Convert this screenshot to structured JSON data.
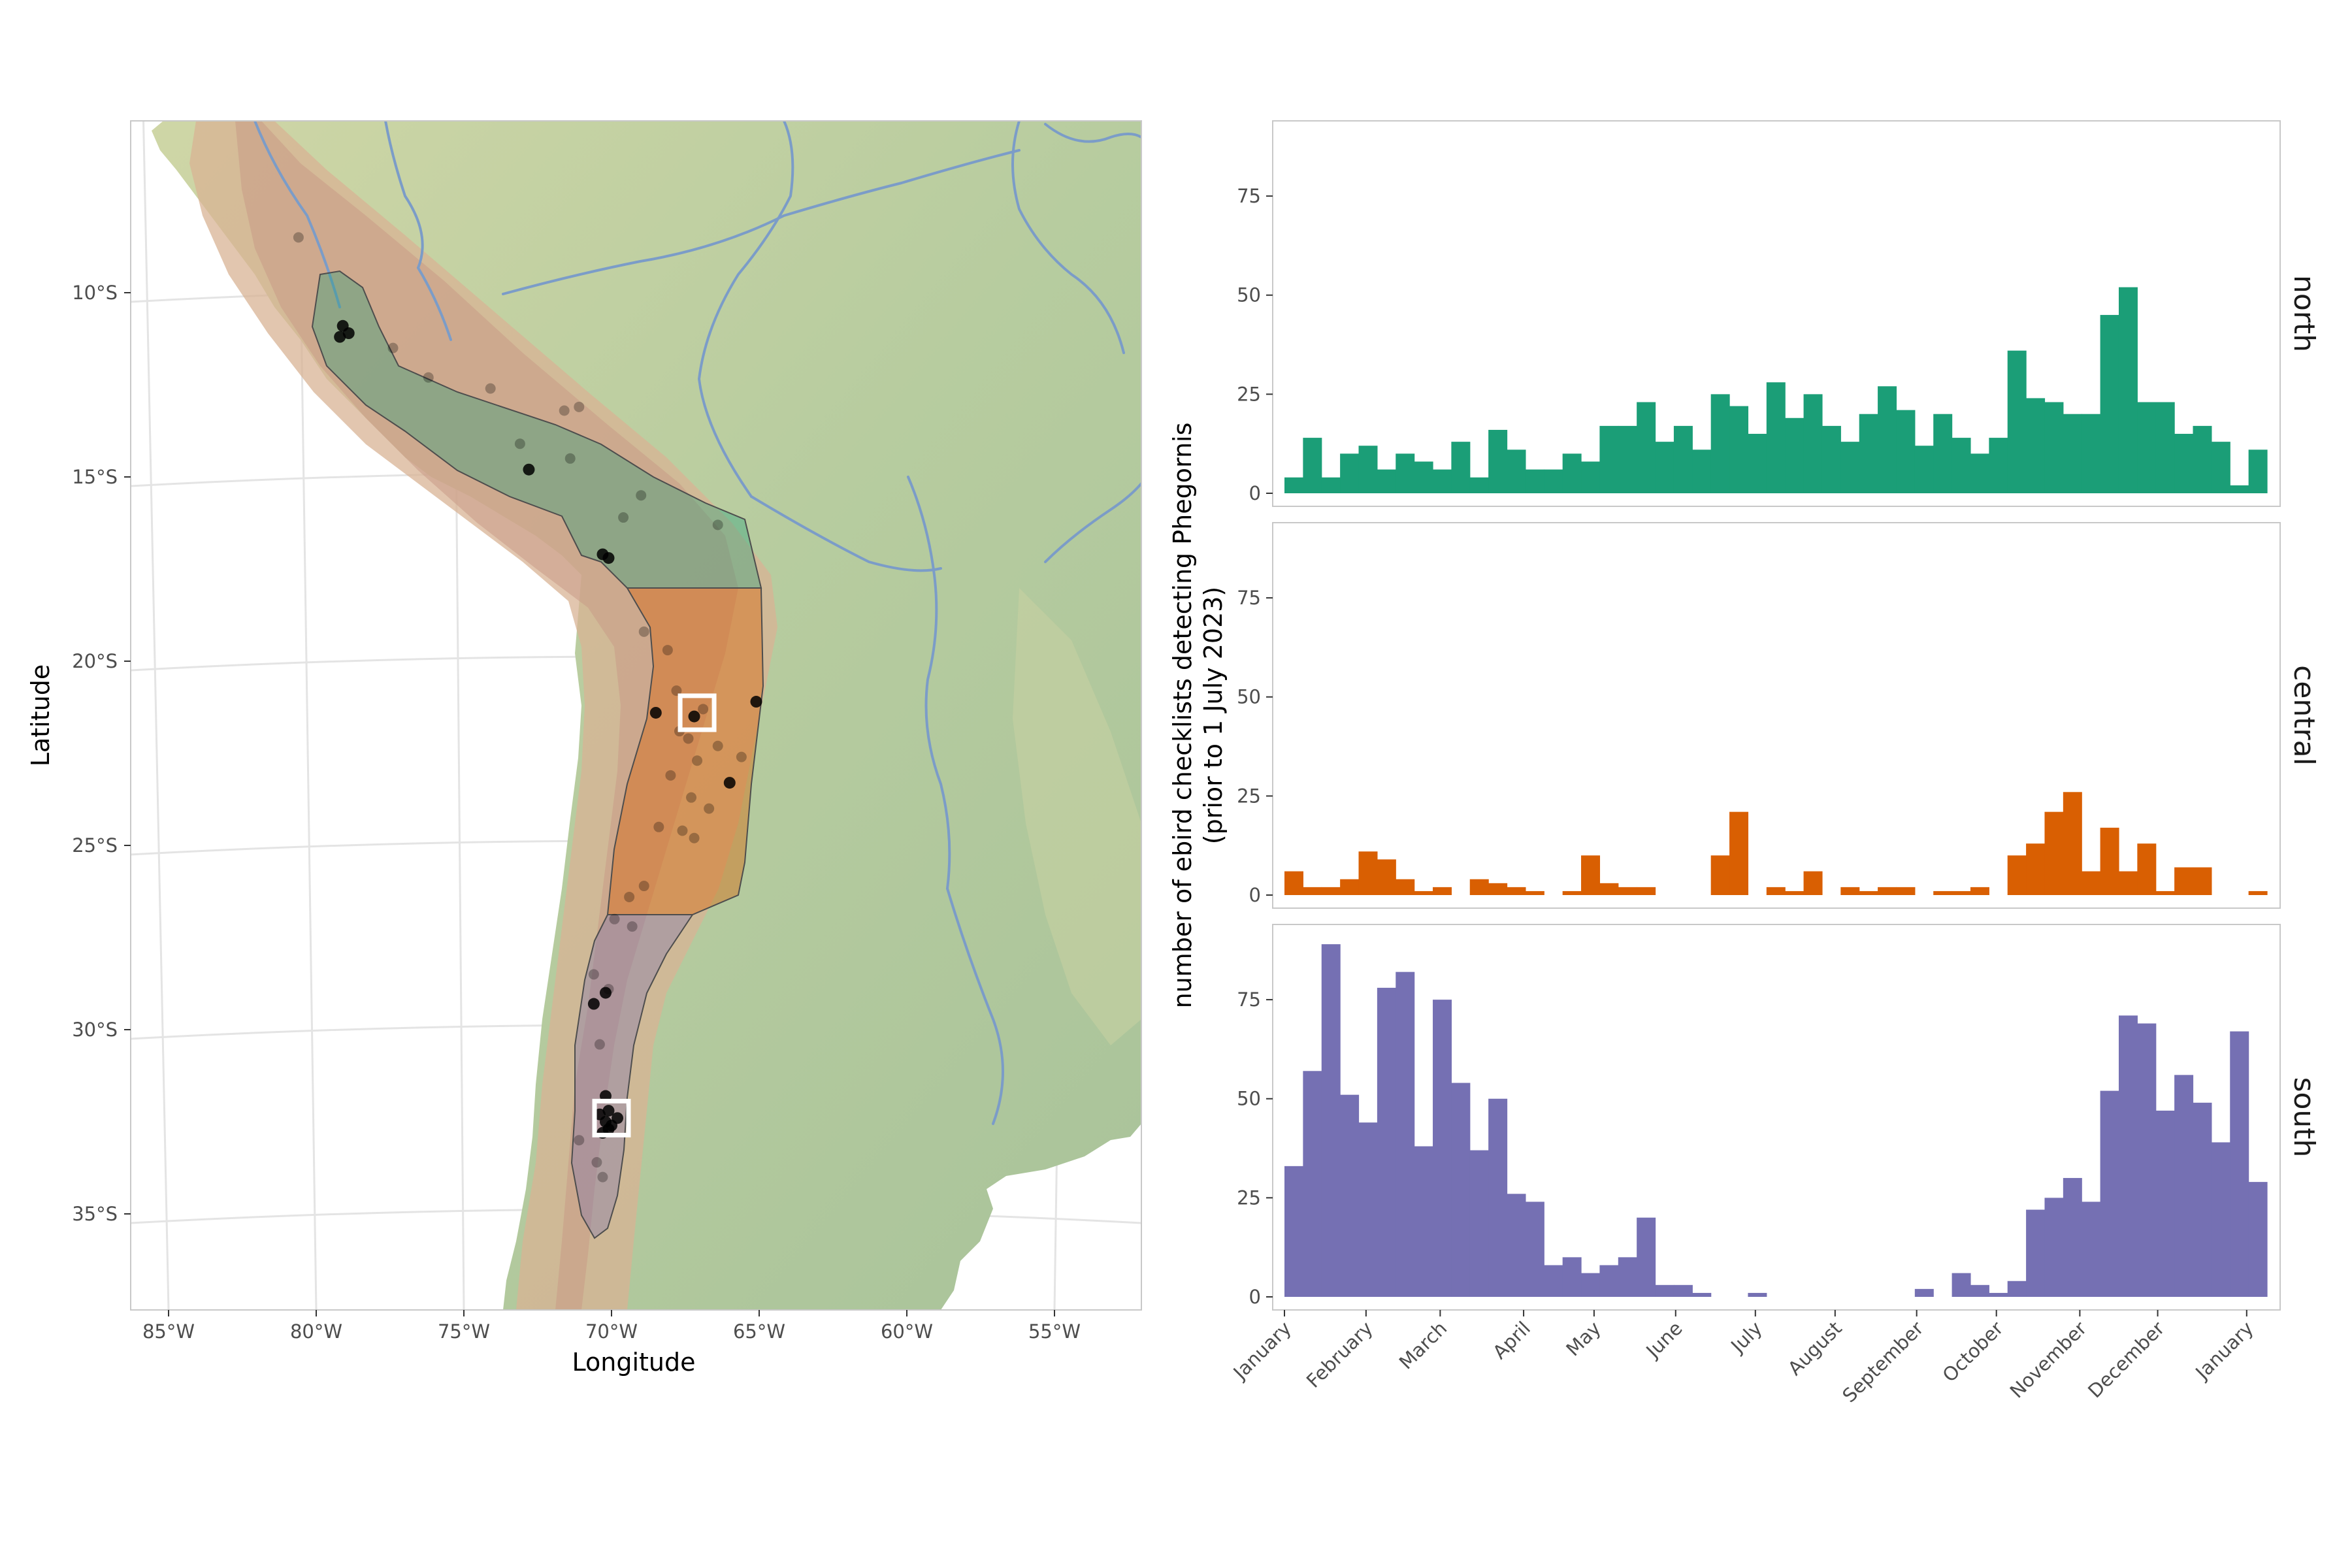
{
  "colors": {
    "north": "#1b9e77",
    "central": "#d95f02",
    "south": "#7570b3",
    "ocean": "#ffffff",
    "land_low": "#a9c49a",
    "land_high": "#d9a98a",
    "river": "#7b9cc8",
    "frame": "#c8c8c8"
  },
  "map": {
    "xlabel": "Longitude",
    "ylabel": "Latitude",
    "lat_ticks": [
      "10°S",
      "15°S",
      "20°S",
      "25°S",
      "30°S",
      "35°S"
    ],
    "lon_ticks": [
      "85°W",
      "80°W",
      "75°W",
      "70°W",
      "65°W",
      "60°W",
      "55°W"
    ],
    "regions": [
      {
        "name": "north",
        "color": "#1b9e77"
      },
      {
        "name": "central",
        "color": "#d95f02"
      },
      {
        "name": "south",
        "color": "#7570b3"
      }
    ],
    "study_sites": [
      {
        "lon": -67.1,
        "lat": -21.4
      },
      {
        "lon": -70.0,
        "lat": -32.4
      }
    ],
    "observation_points": [
      {
        "lon": -79.1,
        "lat": -10.9
      },
      {
        "lon": -78.9,
        "lat": -11.1
      },
      {
        "lon": -79.2,
        "lat": -11.2
      },
      {
        "lon": -72.8,
        "lat": -14.8
      },
      {
        "lon": -70.1,
        "lat": -17.2
      },
      {
        "lon": -70.3,
        "lat": -17.1
      },
      {
        "lon": -68.5,
        "lat": -21.4
      },
      {
        "lon": -65.1,
        "lat": -21.1
      },
      {
        "lon": -67.2,
        "lat": -21.5
      },
      {
        "lon": -66.0,
        "lat": -23.3
      },
      {
        "lon": -70.6,
        "lat": -29.3
      },
      {
        "lon": -70.2,
        "lat": -29.0
      },
      {
        "lon": -70.2,
        "lat": -31.8
      },
      {
        "lon": -70.4,
        "lat": -32.3
      },
      {
        "lon": -70.0,
        "lat": -32.6
      },
      {
        "lon": -70.2,
        "lat": -32.5
      },
      {
        "lon": -70.1,
        "lat": -32.7
      },
      {
        "lon": -69.8,
        "lat": -32.4
      },
      {
        "lon": -70.1,
        "lat": -32.2
      },
      {
        "lon": -70.3,
        "lat": -32.8
      }
    ],
    "faint_points": [
      {
        "lon": -80.6,
        "lat": -8.5
      },
      {
        "lon": -77.4,
        "lat": -11.5
      },
      {
        "lon": -76.2,
        "lat": -12.3
      },
      {
        "lon": -74.1,
        "lat": -12.6
      },
      {
        "lon": -71.1,
        "lat": -13.1
      },
      {
        "lon": -71.6,
        "lat": -13.2
      },
      {
        "lon": -73.1,
        "lat": -14.1
      },
      {
        "lon": -71.4,
        "lat": -14.5
      },
      {
        "lon": -69.0,
        "lat": -15.5
      },
      {
        "lon": -66.4,
        "lat": -16.3
      },
      {
        "lon": -69.6,
        "lat": -16.1
      },
      {
        "lon": -68.1,
        "lat": -19.7
      },
      {
        "lon": -68.9,
        "lat": -19.2
      },
      {
        "lon": -67.8,
        "lat": -20.8
      },
      {
        "lon": -66.9,
        "lat": -21.3
      },
      {
        "lon": -67.4,
        "lat": -22.1
      },
      {
        "lon": -67.7,
        "lat": -21.9
      },
      {
        "lon": -66.4,
        "lat": -22.3
      },
      {
        "lon": -67.1,
        "lat": -22.7
      },
      {
        "lon": -65.6,
        "lat": -22.6
      },
      {
        "lon": -68.0,
        "lat": -23.1
      },
      {
        "lon": -67.3,
        "lat": -23.7
      },
      {
        "lon": -66.7,
        "lat": -24.0
      },
      {
        "lon": -67.6,
        "lat": -24.6
      },
      {
        "lon": -67.2,
        "lat": -24.8
      },
      {
        "lon": -68.4,
        "lat": -24.5
      },
      {
        "lon": -68.9,
        "lat": -26.1
      },
      {
        "lon": -69.4,
        "lat": -26.4
      },
      {
        "lon": -69.9,
        "lat": -27.0
      },
      {
        "lon": -69.3,
        "lat": -27.2
      },
      {
        "lon": -70.6,
        "lat": -28.5
      },
      {
        "lon": -70.1,
        "lat": -28.9
      },
      {
        "lon": -70.4,
        "lat": -30.4
      },
      {
        "lon": -70.5,
        "lat": -33.6
      },
      {
        "lon": -70.3,
        "lat": -34.0
      },
      {
        "lon": -71.1,
        "lat": -33.0
      }
    ]
  },
  "chart_data": {
    "type": "bar",
    "bar_style": "histogram",
    "ylabel": "number of ebird checklists detecting Phegornis\n(prior to 1 July 2023)",
    "xlabel": "",
    "ylim": [
      0,
      92
    ],
    "yticks": [
      0,
      25,
      50,
      75
    ],
    "x_ticks": [
      "January",
      "February",
      "March",
      "April",
      "May",
      "June",
      "July",
      "August",
      "September",
      "October",
      "November",
      "December",
      "January"
    ],
    "x_tick_weeks": [
      0,
      4.4,
      8.4,
      12.9,
      16.7,
      21.1,
      25.4,
      29.7,
      34.1,
      38.4,
      42.9,
      47.1,
      51.9
    ],
    "bin_width_weeks": 1,
    "series": [
      {
        "name": "north",
        "values": [
          4,
          14,
          4,
          10,
          12,
          6,
          10,
          8,
          6,
          13,
          4,
          16,
          11,
          6,
          6,
          10,
          8,
          17,
          17,
          23,
          13,
          17,
          11,
          25,
          22,
          15,
          28,
          19,
          25,
          17,
          13,
          20,
          27,
          21,
          12,
          20,
          14,
          10,
          14,
          36,
          24,
          23,
          20,
          20,
          45,
          52,
          23,
          23,
          15,
          17,
          13,
          2,
          11
        ]
      },
      {
        "name": "central",
        "values": [
          6,
          2,
          2,
          4,
          11,
          9,
          4,
          1,
          2,
          0,
          4,
          3,
          2,
          1,
          0,
          1,
          10,
          3,
          2,
          2,
          0,
          0,
          0,
          10,
          21,
          0,
          2,
          1,
          6,
          0,
          2,
          1,
          2,
          2,
          0,
          1,
          1,
          2,
          0,
          10,
          13,
          21,
          26,
          6,
          17,
          6,
          13,
          1,
          7,
          7,
          0,
          0,
          1
        ]
      },
      {
        "name": "south",
        "values": [
          33,
          57,
          89,
          51,
          44,
          78,
          82,
          38,
          75,
          54,
          37,
          50,
          26,
          24,
          8,
          10,
          6,
          8,
          10,
          20,
          3,
          3,
          1,
          0,
          0,
          1,
          0,
          0,
          0,
          0,
          0,
          0,
          0,
          0,
          2,
          0,
          6,
          3,
          1,
          4,
          22,
          25,
          30,
          24,
          52,
          71,
          69,
          47,
          56,
          49,
          39,
          67,
          29
        ]
      }
    ]
  }
}
